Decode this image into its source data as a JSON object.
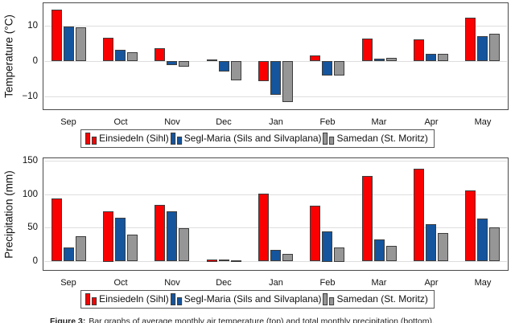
{
  "figure": {
    "caption_prefix": "Figure 3:",
    "caption_text": "Bar graphs of average monthly air temperature (top) and total monthly precipitation (bottom)."
  },
  "colors": {
    "red": "#fa0000",
    "blue": "#14559e",
    "gray": "#969696",
    "bar_border": "#3d3d3d",
    "grid": "#dedede",
    "axis_border": "#4a4a4a"
  },
  "months": [
    "Sep",
    "Oct",
    "Nov",
    "Dec",
    "Jan",
    "Feb",
    "Mar",
    "Apr",
    "May"
  ],
  "legend": {
    "entries": [
      {
        "label": "Einsiedeln (Sihl)",
        "color_key": "red"
      },
      {
        "label": "Segl-Maria (Sils and Silvaplana)",
        "color_key": "blue"
      },
      {
        "label": "Samedan (St. Moritz)",
        "color_key": "gray"
      }
    ]
  },
  "chart_data": [
    {
      "type": "bar",
      "title": "",
      "xlabel": "",
      "ylabel": "Temperature (°C)",
      "categories": [
        "Sep",
        "Oct",
        "Nov",
        "Dec",
        "Jan",
        "Feb",
        "Mar",
        "Apr",
        "May"
      ],
      "series": [
        {
          "name": "Einsiedeln (Sihl)",
          "values": [
            14.5,
            6.6,
            3.7,
            0.4,
            -5.6,
            1.6,
            6.4,
            6.1,
            12.3
          ]
        },
        {
          "name": "Segl-Maria (Sils and Silvaplana)",
          "values": [
            9.7,
            3.1,
            -1.1,
            -3.0,
            -9.6,
            -4.2,
            0.6,
            2.1,
            7.0
          ]
        },
        {
          "name": "Samedan (St. Moritz)",
          "values": [
            9.5,
            2.5,
            -1.6,
            -5.5,
            -11.6,
            -4.2,
            1.0,
            2.0,
            7.8
          ]
        }
      ],
      "yticks": [
        10,
        0,
        -10
      ],
      "ytick_labels": [
        "10",
        "0",
        "−10"
      ],
      "ylim": [
        -13.9,
        16.6
      ],
      "grid": true,
      "legend_position": "below"
    },
    {
      "type": "bar",
      "title": "",
      "xlabel": "",
      "ylabel": "Precipitation (mm)",
      "categories": [
        "Sep",
        "Oct",
        "Nov",
        "Dec",
        "Jan",
        "Feb",
        "Mar",
        "Apr",
        "May"
      ],
      "series": [
        {
          "name": "Einsiedeln (Sihl)",
          "values": [
            94,
            75,
            84,
            3,
            101,
            83,
            127,
            138,
            106
          ]
        },
        {
          "name": "Segl-Maria (Sils and Silvaplana)",
          "values": [
            20,
            65,
            74,
            2,
            17,
            45,
            32,
            55,
            64
          ]
        },
        {
          "name": "Samedan (St. Moritz)",
          "values": [
            37,
            40,
            49,
            1,
            11,
            21,
            23,
            42,
            50
          ]
        }
      ],
      "yticks": [
        0,
        50,
        100,
        150
      ],
      "ytick_labels": [
        "0",
        "50",
        "100",
        "150"
      ],
      "ylim": [
        -14.4,
        154.8
      ],
      "grid": true,
      "legend_position": "below"
    }
  ]
}
